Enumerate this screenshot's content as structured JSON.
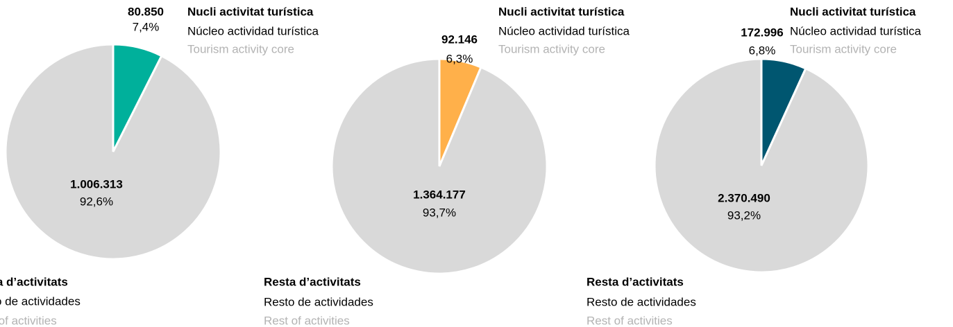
{
  "chart_data": [
    {
      "type": "pie",
      "categories": [
        "Nucli activitat turística",
        "Resta d’activitats"
      ],
      "categories_es": [
        "Núcleo actividad turística",
        "Resto de actividades"
      ],
      "categories_en": [
        "Tourism activity core",
        "Rest of activities"
      ],
      "values": [
        80850,
        1006313
      ],
      "value_labels": [
        "80.850",
        "1.006.313"
      ],
      "percents": [
        7.4,
        92.6
      ],
      "percent_labels": [
        "7,4%",
        "92,6%"
      ],
      "colors": [
        "#00b09b",
        "#d9d9d9"
      ]
    },
    {
      "type": "pie",
      "categories": [
        "Nucli activitat turística",
        "Resta d’activitats"
      ],
      "categories_es": [
        "Núcleo actividad turística",
        "Resto de actividades"
      ],
      "categories_en": [
        "Tourism activity core",
        "Rest of activities"
      ],
      "values": [
        92146,
        1364177
      ],
      "value_labels": [
        "92.146",
        "1.364.177"
      ],
      "percents": [
        6.3,
        93.7
      ],
      "percent_labels": [
        "6,3%",
        "93,7%"
      ],
      "colors": [
        "#ffb04a",
        "#d9d9d9"
      ]
    },
    {
      "type": "pie",
      "categories": [
        "Nucli activitat turística",
        "Resta d’activitats"
      ],
      "categories_es": [
        "Núcleo actividad turística",
        "Resto de actividades"
      ],
      "categories_en": [
        "Tourism activity core",
        "Rest of activities"
      ],
      "values": [
        172996,
        2370490
      ],
      "value_labels": [
        "172.996",
        "2.370.490"
      ],
      "percents": [
        6.8,
        93.2
      ],
      "percent_labels": [
        "6,8%",
        "93,2%"
      ],
      "colors": [
        "#005670",
        "#d9d9d9"
      ]
    }
  ]
}
